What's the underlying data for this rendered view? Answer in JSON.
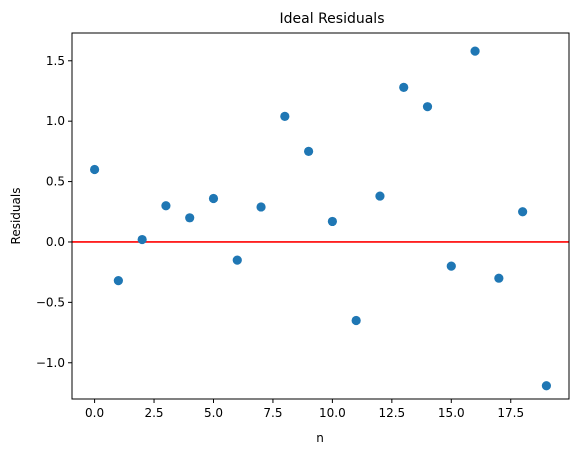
{
  "chart_data": {
    "type": "scatter",
    "title": "Ideal Residuals",
    "xlabel": "n",
    "ylabel": "Residuals",
    "xlim": [
      -0.95,
      19.95
    ],
    "ylim": [
      -1.3,
      1.73
    ],
    "xticks": [
      0.0,
      2.5,
      5.0,
      7.5,
      10.0,
      12.5,
      15.0,
      17.5
    ],
    "xtick_labels": [
      "0.0",
      "2.5",
      "5.0",
      "7.5",
      "10.0",
      "12.5",
      "15.0",
      "17.5"
    ],
    "yticks": [
      -1.0,
      -0.5,
      0.0,
      0.5,
      1.0,
      1.5
    ],
    "ytick_labels": [
      "−1.0",
      "−0.5",
      "0.0",
      "0.5",
      "1.0",
      "1.5"
    ],
    "grid": false,
    "series": [
      {
        "color": "#1f77b4",
        "x": [
          0,
          1,
          2,
          3,
          4,
          5,
          6,
          7,
          8,
          9,
          10,
          11,
          12,
          13,
          14,
          15,
          16,
          17,
          18,
          19
        ],
        "y": [
          0.6,
          -0.32,
          0.02,
          0.3,
          0.2,
          0.36,
          -0.15,
          0.29,
          1.04,
          0.75,
          0.17,
          -0.65,
          0.38,
          1.28,
          1.12,
          -0.2,
          1.58,
          -0.3,
          0.25,
          -1.19
        ]
      }
    ],
    "reference_line": {
      "orientation": "horizontal",
      "y": 0.0,
      "color": "#ff0000"
    }
  }
}
